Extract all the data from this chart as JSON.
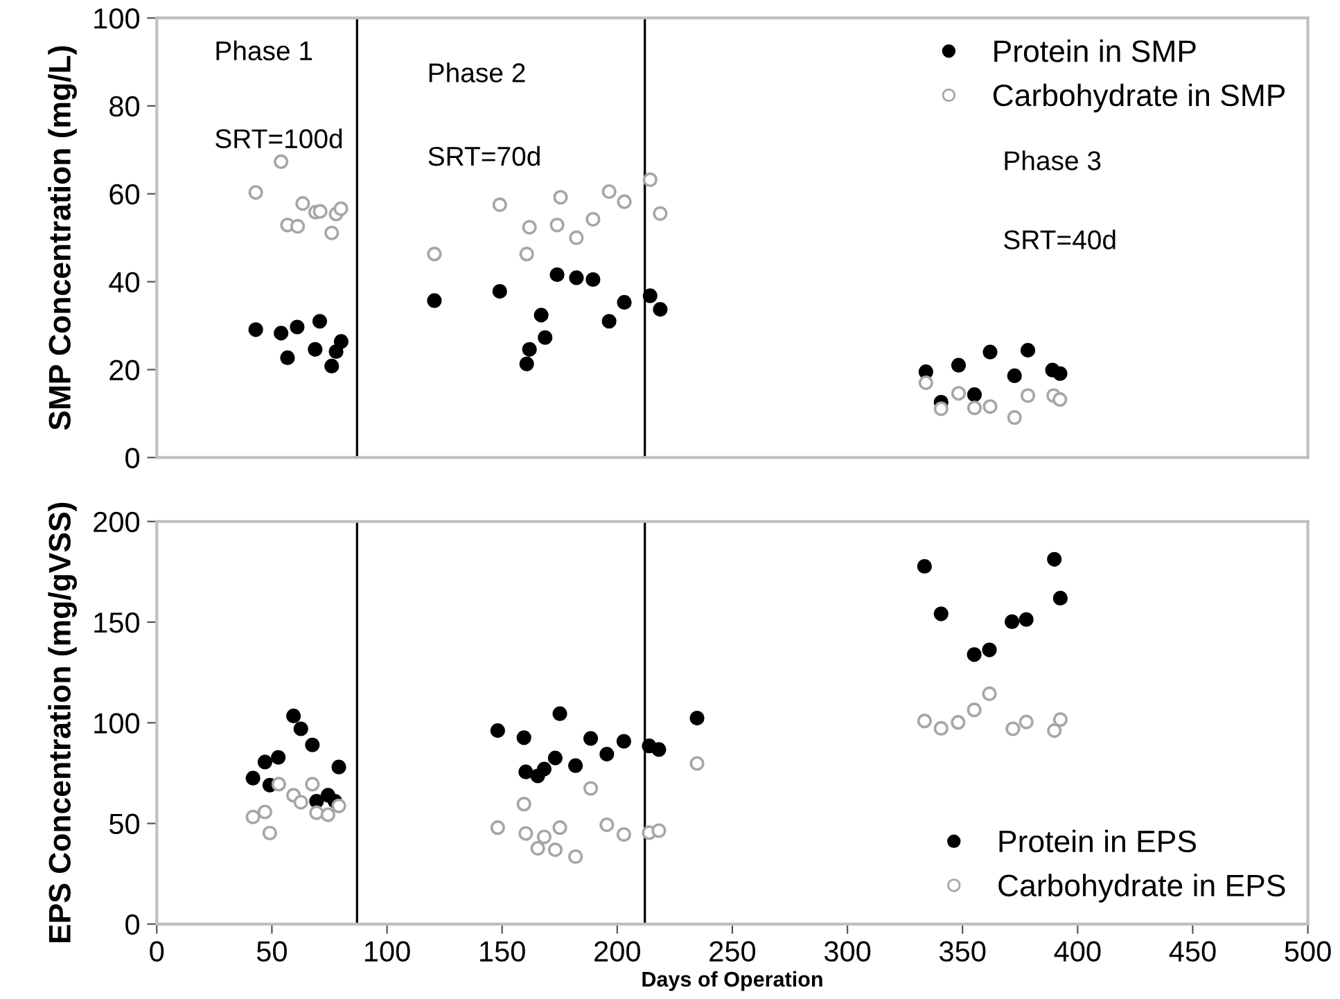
{
  "chart_data": [
    {
      "type": "scatter",
      "ylabel": "SMP Concentration (mg/L)",
      "xlim": [
        0,
        500
      ],
      "ylim": [
        0,
        100
      ],
      "yticks": [
        0,
        20,
        40,
        60,
        80,
        100
      ],
      "tick_labels": "y",
      "marker": "circle",
      "legend": "top right",
      "grid": false,
      "annotations": [
        "Phase 1",
        "SRT=100d",
        "Phase 2",
        "SRT=70d",
        "Phase 3",
        "SRT=40d"
      ],
      "ref_lines": [
        {
          "axis": "x",
          "value": 87,
          "color": "#000000"
        },
        {
          "axis": "x",
          "value": 212,
          "color": "#000000"
        }
      ],
      "series": [
        {
          "name": "Protein in SMP",
          "color": "#000000",
          "x": [
            43.0,
            54.0,
            56.8,
            61.0,
            68.8,
            70.8,
            76.0,
            77.9,
            80.1,
            120.6,
            149.0,
            160.7,
            161.9,
            167.0,
            168.7,
            173.9,
            182.3,
            189.5,
            196.5,
            203.1,
            214.3,
            218.7,
            334.1,
            340.7,
            348.3,
            355.2,
            362.0,
            372.6,
            378.4,
            389.1,
            392.4
          ],
          "values": [
            29.1,
            28.3,
            22.7,
            29.7,
            24.6,
            31.0,
            20.8,
            24.1,
            26.4,
            35.7,
            37.8,
            21.3,
            24.6,
            32.4,
            27.3,
            41.6,
            40.9,
            40.5,
            31.0,
            35.3,
            36.8,
            33.7,
            19.5,
            12.6,
            21.0,
            14.3,
            24.0,
            18.6,
            24.4,
            19.9,
            19.1
          ]
        },
        {
          "name": "Carbohydrate in SMP",
          "color": "#a6a6a6",
          "x": [
            43.0,
            54.0,
            56.8,
            61.2,
            63.4,
            69.0,
            71.0,
            76.0,
            77.9,
            80.0,
            120.6,
            149.0,
            160.7,
            161.9,
            173.9,
            175.4,
            182.3,
            189.5,
            196.5,
            203.1,
            214.3,
            218.7,
            334.1,
            340.7,
            348.3,
            355.2,
            362.0,
            372.6,
            378.4,
            389.6,
            392.3
          ],
          "values": [
            60.3,
            67.3,
            52.9,
            52.6,
            57.8,
            55.8,
            56.0,
            51.1,
            55.4,
            56.6,
            46.3,
            57.5,
            46.3,
            52.4,
            52.9,
            59.2,
            50.0,
            54.2,
            60.5,
            58.2,
            63.2,
            55.5,
            17.0,
            11.1,
            14.6,
            11.3,
            11.6,
            9.1,
            14.1,
            14.1,
            13.2
          ]
        }
      ]
    },
    {
      "type": "scatter",
      "xlabel": "Days of Operation",
      "ylabel": "EPS Concentration (mg/gVSS)",
      "xlim": [
        0,
        500
      ],
      "xticks": [
        0,
        50,
        100,
        150,
        200,
        250,
        300,
        350,
        400,
        450,
        500
      ],
      "ylim": [
        0,
        200
      ],
      "yticks": [
        0,
        50,
        100,
        150,
        200
      ],
      "marker": "circle",
      "legend": "bottom right",
      "grid": false,
      "ref_lines": [
        {
          "axis": "x",
          "value": 87,
          "color": "#000000"
        },
        {
          "axis": "x",
          "value": 212,
          "color": "#000000"
        }
      ],
      "series": [
        {
          "name": "Protein in EPS",
          "color": "#000000",
          "x": [
            41.8,
            47.0,
            49.1,
            52.8,
            59.4,
            62.6,
            67.6,
            69.4,
            74.4,
            77.4,
            79.1,
            148.1,
            159.5,
            160.3,
            165.5,
            168.3,
            173.1,
            175.1,
            181.9,
            188.5,
            195.5,
            202.9,
            213.9,
            218.1,
            234.7,
            333.5,
            340.7,
            355.1,
            361.7,
            371.5,
            377.7,
            389.9,
            392.5
          ],
          "values": [
            72.5,
            80.5,
            69.0,
            82.8,
            103.4,
            97.0,
            89.0,
            61.0,
            64.0,
            61.0,
            78.0,
            96.1,
            92.6,
            75.6,
            73.6,
            77.0,
            82.5,
            104.5,
            78.7,
            92.2,
            84.4,
            90.8,
            88.5,
            86.7,
            102.3,
            177.7,
            154.1,
            133.9,
            136.2,
            150.2,
            151.3,
            181.2,
            161.9
          ]
        },
        {
          "name": "Carbohydrate in EPS",
          "color": "#a6a6a6",
          "x": [
            41.8,
            47.0,
            49.1,
            53.0,
            59.4,
            62.6,
            67.6,
            69.4,
            74.4,
            79.1,
            148.1,
            159.5,
            160.3,
            165.5,
            168.3,
            173.1,
            175.1,
            181.9,
            188.5,
            195.5,
            202.9,
            213.9,
            218.1,
            234.7,
            333.5,
            340.7,
            348.1,
            355.1,
            361.7,
            371.9,
            377.7,
            389.9,
            392.5
          ],
          "values": [
            53.2,
            55.7,
            45.2,
            69.5,
            64.0,
            60.5,
            69.5,
            55.3,
            54.3,
            58.7,
            47.9,
            59.6,
            45.0,
            37.6,
            43.3,
            36.9,
            47.9,
            33.5,
            67.4,
            49.3,
            44.5,
            45.4,
            46.4,
            79.8,
            100.9,
            97.2,
            100.2,
            106.4,
            114.4,
            97.0,
            100.4,
            96.1,
            101.6
          ]
        }
      ]
    }
  ]
}
